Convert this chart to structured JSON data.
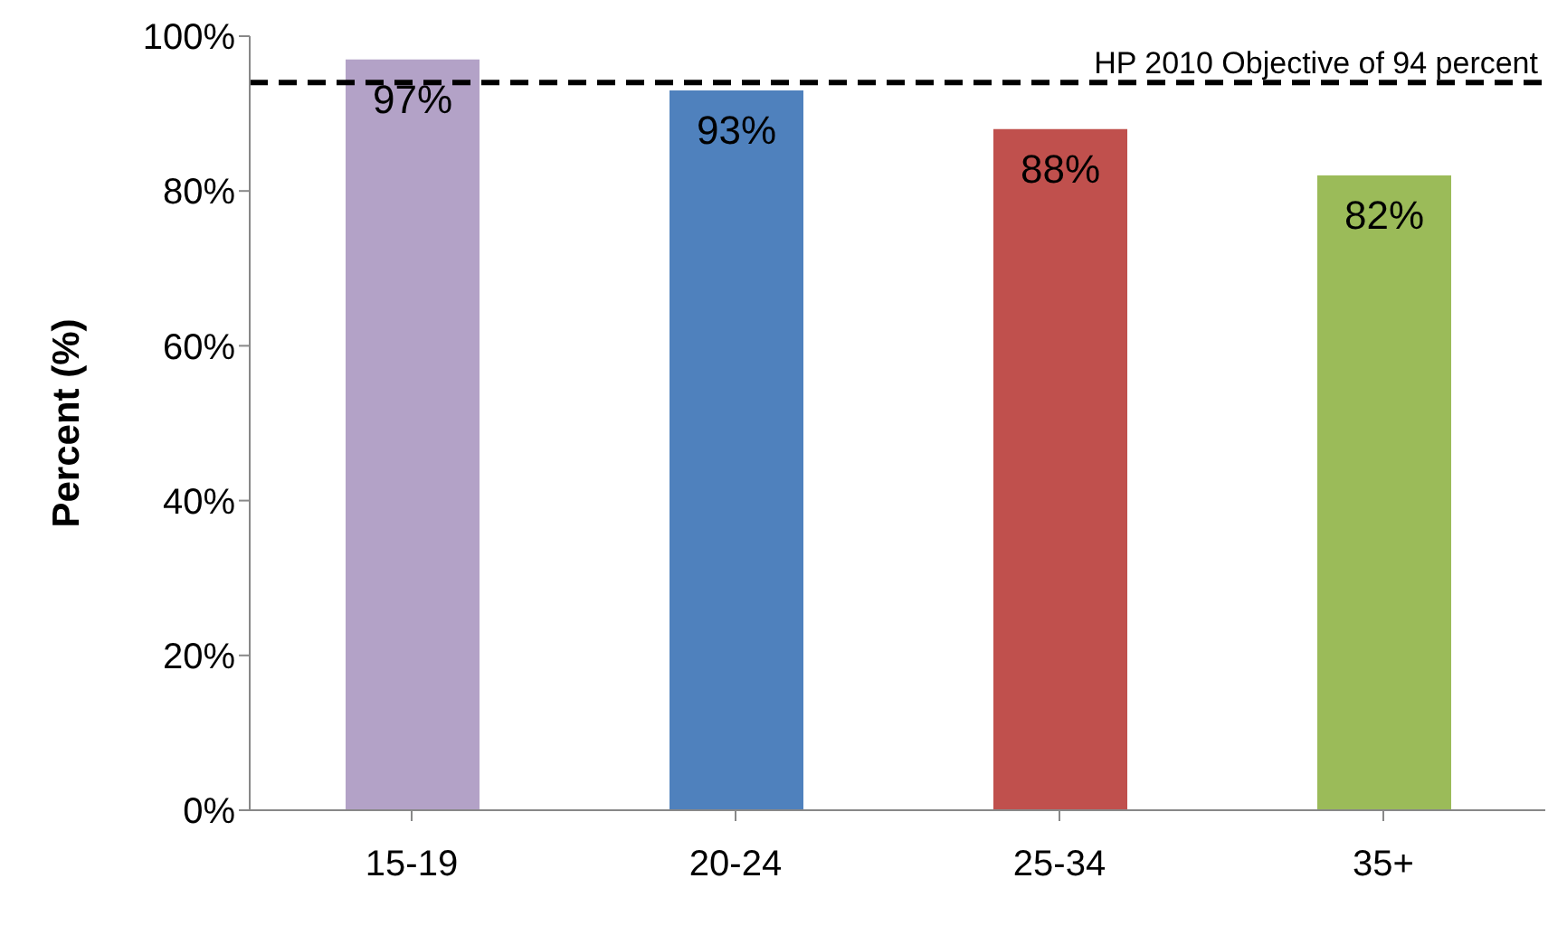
{
  "chart_data": {
    "type": "bar",
    "ylabel": "Percent (%)",
    "categories": [
      "15-19",
      "20-24",
      "25-34",
      "35+"
    ],
    "values": [
      97,
      93,
      88,
      82
    ],
    "colors": [
      "#b3a2c7",
      "#4f81bd",
      "#c0504d",
      "#9bbb59"
    ],
    "value_labels": [
      "97%",
      "93%",
      "88%",
      "82%"
    ],
    "ylim": [
      0,
      100
    ],
    "yticks": [
      {
        "value": 0,
        "label": "0%"
      },
      {
        "value": 20,
        "label": "20%"
      },
      {
        "value": 40,
        "label": "40%"
      },
      {
        "value": 60,
        "label": "60%"
      },
      {
        "value": 80,
        "label": "80%"
      },
      {
        "value": 100,
        "label": "100%"
      }
    ],
    "grid": false,
    "legend": false,
    "ref_lines": [
      {
        "axis": "y",
        "value": 94,
        "label": "HP 2010 Objective of 94 percent",
        "color": "#000000",
        "line_style": "dashed"
      }
    ]
  }
}
